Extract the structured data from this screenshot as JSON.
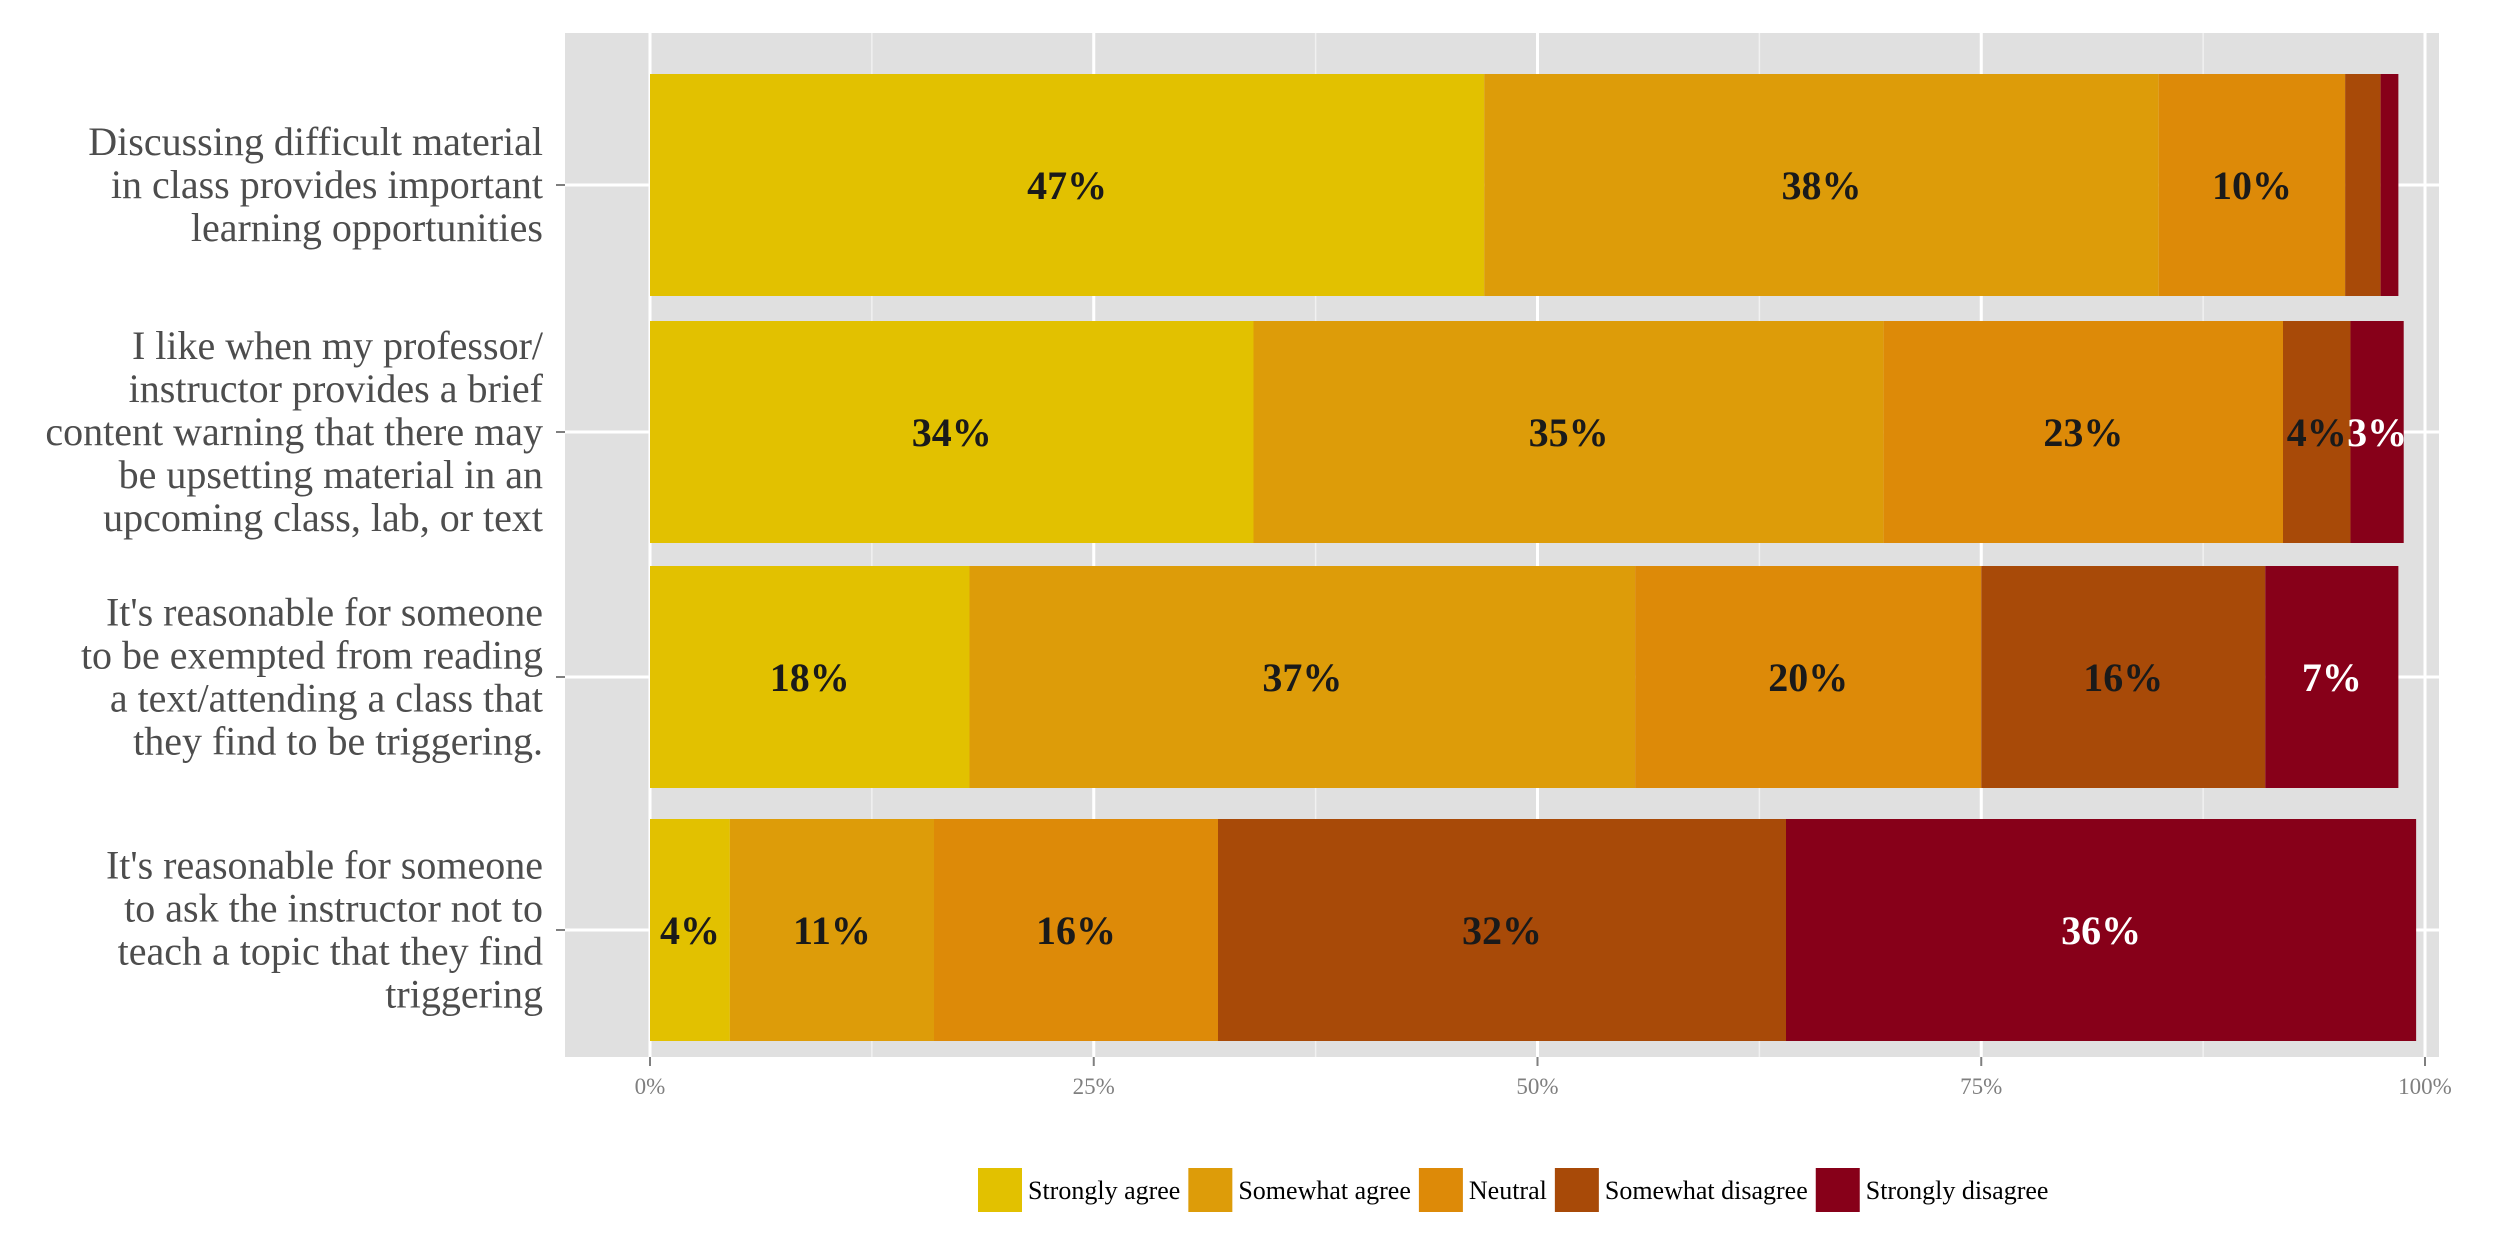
{
  "chart_data": {
    "type": "bar",
    "orientation": "horizontal",
    "stacked": true,
    "categories": [
      "Discussing difficult material in class provides important learning opportunities",
      "I like when my professor/ instructor provides a brief content warning that there may be upsetting material in an upcoming class, lab, or text",
      "It's reasonable for someone to be exempted from reading a text/attending a class that they find to be triggering.",
      "It's reasonable for someone to ask the instructor not to teach a topic that they find triggering"
    ],
    "category_lines": [
      [
        "Discussing difficult material",
        "in class provides important",
        "learning opportunities"
      ],
      [
        "I like when my professor/",
        "instructor provides a brief",
        "content warning that there may",
        "be upsetting material in an",
        "upcoming class, lab, or text"
      ],
      [
        "It's reasonable for someone",
        "to be exempted from reading",
        "a text/attending a class that",
        "they find to be triggering."
      ],
      [
        "It's reasonable for someone",
        "to ask the instructor not to",
        "teach a topic that they find",
        "triggering"
      ]
    ],
    "series": [
      {
        "name": "Strongly agree",
        "color": "#E2C100",
        "values": [
          47,
          34,
          18,
          4.5
        ],
        "labels": [
          "47%",
          "34%",
          "18%",
          "4%"
        ]
      },
      {
        "name": "Somewhat agree",
        "color": "#DD9C09",
        "values": [
          38,
          35.5,
          37.5,
          11.5
        ],
        "labels": [
          "38%",
          "35%",
          "37%",
          "11%"
        ]
      },
      {
        "name": "Neutral",
        "color": "#DD8A08",
        "values": [
          10.5,
          22.5,
          19.5,
          16
        ],
        "labels": [
          "10%",
          "23%",
          "20%",
          "16%"
        ]
      },
      {
        "name": "Somewhat disagree",
        "color": "#A84A08",
        "values": [
          2,
          3.8,
          16,
          32
        ],
        "labels": [
          "",
          "4%",
          "16%",
          "32%"
        ]
      },
      {
        "name": "Strongly disagree",
        "color": "#870019",
        "values": [
          1,
          3,
          7.5,
          35.5
        ],
        "labels": [
          "",
          "3%",
          "7%",
          "36%"
        ]
      }
    ],
    "label_colors": [
      "#1a1a1a",
      "#1a1a1a",
      "#1a1a1a",
      "#1a1a1a",
      "#ffffff"
    ],
    "xlim": [
      0,
      100
    ],
    "xticks": [
      {
        "value": 0,
        "label": "0%"
      },
      {
        "value": 25,
        "label": "25%"
      },
      {
        "value": 50,
        "label": "50%"
      },
      {
        "value": 75,
        "label": "75%"
      },
      {
        "value": 100,
        "label": "100%"
      }
    ],
    "grid": true,
    "legend_position": "bottom",
    "panel_color": "#E0E0E0",
    "grid_color": "#FFFFFF"
  }
}
